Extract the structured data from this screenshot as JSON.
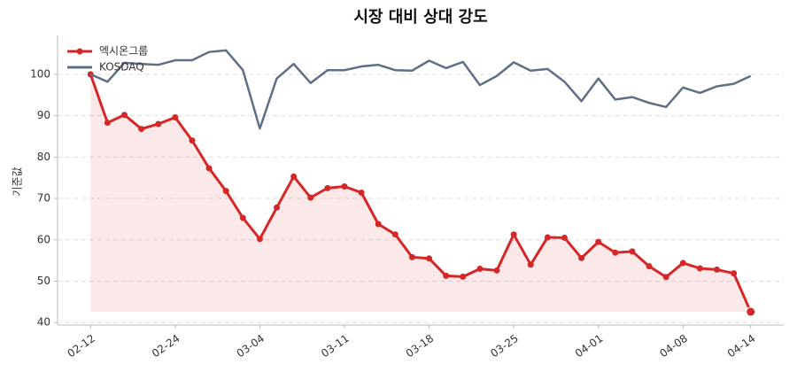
{
  "chart_data": {
    "type": "line",
    "title": "시장 대비 상대 강도",
    "y_label": "기준값",
    "categories": [
      "02-12",
      null,
      null,
      null,
      null,
      "02-24",
      null,
      null,
      null,
      null,
      "03-04",
      null,
      null,
      null,
      null,
      "03-11",
      null,
      null,
      null,
      null,
      "03-18",
      null,
      null,
      null,
      null,
      "03-25",
      null,
      null,
      null,
      null,
      "04-01",
      null,
      null,
      null,
      null,
      "04-08",
      null,
      null,
      null,
      "04-14"
    ],
    "series": [
      {
        "name": "엑시온그룹",
        "color": "#d62728",
        "fill": true,
        "markers": true,
        "values": [
          100,
          88.3,
          90.2,
          86.8,
          88,
          89.6,
          84,
          77.3,
          71.8,
          65.3,
          60.2,
          67.8,
          75.3,
          70.2,
          72.5,
          72.9,
          71.4,
          63.8,
          61.3,
          55.8,
          55.5,
          51.3,
          51.1,
          53,
          52.6,
          61.3,
          54,
          60.6,
          60.5,
          55.6,
          59.5,
          56.9,
          57.2,
          53.6,
          51,
          54.4,
          53.1,
          52.8,
          51.9,
          42.6
        ]
      },
      {
        "name": "KOSDAQ",
        "color": "#5f6f86",
        "fill": false,
        "markers": false,
        "values": [
          100,
          98.2,
          102.8,
          102.5,
          102.3,
          103.4,
          103.4,
          105.4,
          105.8,
          101,
          86.9,
          99,
          102.5,
          97.9,
          101,
          101,
          101.9,
          102.3,
          101,
          100.9,
          103.3,
          101.5,
          103,
          97.4,
          99.6,
          102.9,
          100.9,
          101.3,
          98.2,
          93.5,
          99,
          93.9,
          94.5,
          93.1,
          92.1,
          96.8,
          95.5,
          97.1,
          97.7,
          99.6
        ]
      }
    ],
    "ylim": [
      39.4,
      109.4
    ],
    "yticks": [
      40,
      50,
      60,
      70,
      80,
      90,
      100
    ],
    "grid": true,
    "legend": "upper left"
  }
}
